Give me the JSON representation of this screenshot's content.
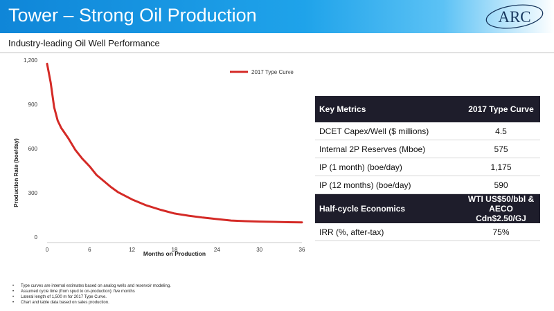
{
  "header": {
    "title": "Tower – Strong Oil Production",
    "subtitle": "Industry-leading Oil Well Performance",
    "logo_text": "ARC"
  },
  "colors": {
    "accent": "#1a97e3",
    "series": "#d42a26",
    "table_header": "#1e1d2b"
  },
  "chart_data": {
    "type": "line",
    "xlabel": "Months on Production",
    "ylabel": "Production Rate (boe/day)",
    "x_ticks": [
      "0",
      "6",
      "12",
      "18",
      "24",
      "30",
      "36"
    ],
    "y_ticks": [
      "0",
      "300",
      "600",
      "900",
      "1,200"
    ],
    "xlim": [
      0,
      36
    ],
    "ylim": [
      0,
      1200
    ],
    "grid": false,
    "legend_position": "top-right",
    "series": [
      {
        "name": "2017 Type Curve",
        "color": "#d42a26",
        "x": [
          0,
          0.5,
          1,
          1.5,
          2,
          3,
          4,
          5,
          6,
          7,
          8,
          9,
          10,
          12,
          14,
          16,
          18,
          20,
          22,
          24,
          26,
          28,
          30,
          32,
          34,
          36
        ],
        "y": [
          1175,
          1050,
          880,
          790,
          740,
          670,
          590,
          530,
          480,
          420,
          380,
          340,
          305,
          255,
          215,
          185,
          160,
          145,
          132,
          122,
          112,
          108,
          105,
          103,
          101,
          100
        ]
      }
    ]
  },
  "table": {
    "sections": [
      {
        "header": [
          "Key Metrics",
          "2017 Type Curve"
        ],
        "rows": [
          [
            "DCET Capex/Well ($ millions)",
            "4.5"
          ],
          [
            "Internal 2P Reserves (Mboe)",
            "575"
          ],
          [
            "IP (1 month) (boe/day)",
            "1,175"
          ],
          [
            "IP (12 months) (boe/day)",
            "590"
          ]
        ]
      },
      {
        "header": [
          "Half-cycle Economics",
          "WTI US$50/bbl & AECO Cdn$2.50/GJ"
        ],
        "rows": [
          [
            "IRR (%, after-tax)",
            "75%"
          ]
        ]
      }
    ]
  },
  "notes": [
    "Type curves are internal estimates based on analog wells and reservoir modeling.",
    "Assumed cycle time (from spud to on-production): five months",
    "Lateral length of 1,500 m for 2017 Type Curve.",
    "Chart and table data based on sales production."
  ]
}
